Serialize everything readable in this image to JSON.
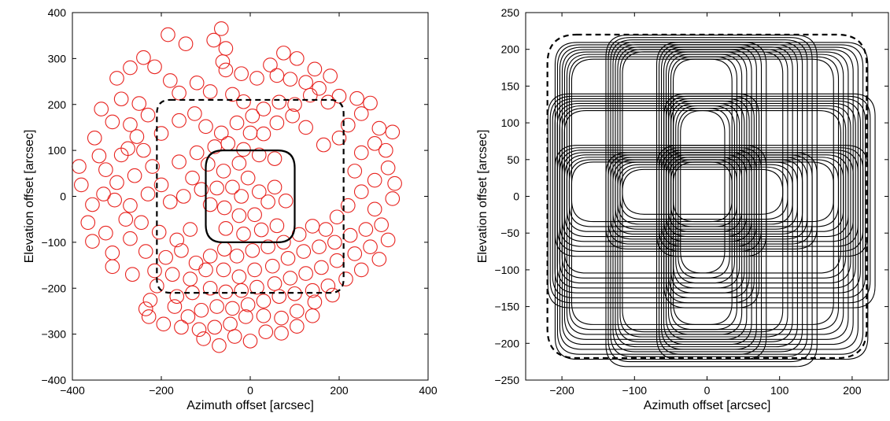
{
  "chart_data": [
    {
      "type": "scatter",
      "marker": "open-circle",
      "marker_color": "#e8231f",
      "xlabel": "Azimuth offset [arcsec]",
      "ylabel": "Elevation offset [arcsec]",
      "xlim": [
        -400,
        400
      ],
      "ylim": [
        -400,
        400
      ],
      "xticks": [
        "−400",
        "−200",
        "0",
        "200",
        "400"
      ],
      "yticks": [
        "−400",
        "−300",
        "−200",
        "−100",
        "0",
        "100",
        "200",
        "300",
        "400"
      ],
      "xtick_values": [
        -400,
        -200,
        0,
        200,
        400
      ],
      "ytick_values": [
        -400,
        -300,
        -200,
        -100,
        0,
        100,
        200,
        300,
        400
      ],
      "grid": false,
      "marker_radius_arcsec": 15.5,
      "points": [
        [
          -65,
          365
        ],
        [
          -185,
          352
        ],
        [
          -82,
          340
        ],
        [
          -145,
          332
        ],
        [
          -55,
          322
        ],
        [
          -62,
          293
        ],
        [
          -240,
          302
        ],
        [
          -270,
          280
        ],
        [
          -215,
          282
        ],
        [
          75,
          312
        ],
        [
          105,
          300
        ],
        [
          45,
          286
        ],
        [
          145,
          277
        ],
        [
          180,
          262
        ],
        [
          -300,
          257
        ],
        [
          -180,
          252
        ],
        [
          -120,
          247
        ],
        [
          -160,
          225
        ],
        [
          -90,
          228
        ],
        [
          -40,
          222
        ],
        [
          -55,
          275
        ],
        [
          -20,
          267
        ],
        [
          15,
          257
        ],
        [
          60,
          263
        ],
        [
          90,
          255
        ],
        [
          125,
          248
        ],
        [
          155,
          235
        ],
        [
          200,
          218
        ],
        [
          -335,
          190
        ],
        [
          -290,
          212
        ],
        [
          -250,
          202
        ],
        [
          -230,
          177
        ],
        [
          -270,
          156
        ],
        [
          -310,
          162
        ],
        [
          -350,
          127
        ],
        [
          -275,
          104
        ],
        [
          -255,
          130
        ],
        [
          -200,
          137
        ],
        [
          -160,
          165
        ],
        [
          -125,
          180
        ],
        [
          -100,
          152
        ],
        [
          -65,
          138
        ],
        [
          -30,
          160
        ],
        [
          5,
          175
        ],
        [
          30,
          190
        ],
        [
          -15,
          206
        ],
        [
          65,
          205
        ],
        [
          100,
          200
        ],
        [
          135,
          220
        ],
        [
          175,
          205
        ],
        [
          240,
          213
        ],
        [
          270,
          203
        ],
        [
          250,
          180
        ],
        [
          290,
          148
        ],
        [
          220,
          155
        ],
        [
          200,
          127
        ],
        [
          165,
          112
        ],
        [
          125,
          150
        ],
        [
          95,
          175
        ],
        [
          60,
          160
        ],
        [
          30,
          136
        ],
        [
          0,
          138
        ],
        [
          -325,
          58
        ],
        [
          -290,
          90
        ],
        [
          -240,
          100
        ],
        [
          -220,
          65
        ],
        [
          -260,
          45
        ],
        [
          -300,
          30
        ],
        [
          -330,
          5
        ],
        [
          -355,
          -18
        ],
        [
          -380,
          25
        ],
        [
          -385,
          65
        ],
        [
          -340,
          88
        ],
        [
          -365,
          -57
        ],
        [
          -305,
          -8
        ],
        [
          -270,
          -20
        ],
        [
          -230,
          5
        ],
        [
          -200,
          25
        ],
        [
          -180,
          -12
        ],
        [
          -150,
          0
        ],
        [
          -130,
          40
        ],
        [
          -160,
          75
        ],
        [
          -120,
          95
        ],
        [
          -80,
          108
        ],
        [
          -50,
          115
        ],
        [
          -15,
          102
        ],
        [
          20,
          90
        ],
        [
          55,
          82
        ],
        [
          -25,
          72
        ],
        [
          -5,
          40
        ],
        [
          -60,
          55
        ],
        [
          -95,
          70
        ],
        [
          -40,
          20
        ],
        [
          -75,
          18
        ],
        [
          -110,
          15
        ],
        [
          -90,
          -18
        ],
        [
          -58,
          -25
        ],
        [
          -20,
          0
        ],
        [
          20,
          10
        ],
        [
          55,
          20
        ],
        [
          40,
          -12
        ],
        [
          80,
          -10
        ],
        [
          -25,
          -42
        ],
        [
          10,
          -40
        ],
        [
          -55,
          -70
        ],
        [
          -15,
          -82
        ],
        [
          25,
          -73
        ],
        [
          60,
          -64
        ],
        [
          -135,
          -72
        ],
        [
          -165,
          -95
        ],
        [
          -205,
          -78
        ],
        [
          -245,
          -57
        ],
        [
          -280,
          -50
        ],
        [
          -325,
          -80
        ],
        [
          -355,
          -98
        ],
        [
          -310,
          -123
        ],
        [
          -270,
          -92
        ],
        [
          -235,
          -120
        ],
        [
          -190,
          -133
        ],
        [
          -155,
          -118
        ],
        [
          -122,
          -145
        ],
        [
          -90,
          -130
        ],
        [
          -58,
          -115
        ],
        [
          -30,
          -130
        ],
        [
          5,
          -118
        ],
        [
          40,
          -110
        ],
        [
          75,
          -100
        ],
        [
          110,
          -83
        ],
        [
          140,
          -65
        ],
        [
          170,
          -72
        ],
        [
          195,
          -45
        ],
        [
          220,
          -20
        ],
        [
          250,
          10
        ],
        [
          280,
          35
        ],
        [
          310,
          62
        ],
        [
          325,
          28
        ],
        [
          320,
          -5
        ],
        [
          280,
          -28
        ],
        [
          235,
          55
        ],
        [
          250,
          95
        ],
        [
          280,
          115
        ],
        [
          305,
          100
        ],
        [
          320,
          140
        ],
        [
          -310,
          -153
        ],
        [
          -265,
          -170
        ],
        [
          -215,
          -162
        ],
        [
          -175,
          -170
        ],
        [
          -135,
          -180
        ],
        [
          -100,
          -160
        ],
        [
          -60,
          -160
        ],
        [
          -25,
          -175
        ],
        [
          10,
          -160
        ],
        [
          50,
          -152
        ],
        [
          85,
          -135
        ],
        [
          120,
          -120
        ],
        [
          155,
          -110
        ],
        [
          190,
          -100
        ],
        [
          225,
          -85
        ],
        [
          260,
          -72
        ],
        [
          295,
          -62
        ],
        [
          310,
          -95
        ],
        [
          270,
          -110
        ],
        [
          235,
          -125
        ],
        [
          195,
          -140
        ],
        [
          160,
          -155
        ],
        [
          125,
          -168
        ],
        [
          90,
          -178
        ],
        [
          55,
          -190
        ],
        [
          15,
          -198
        ],
        [
          -20,
          -205
        ],
        [
          -55,
          -208
        ],
        [
          -90,
          -200
        ],
        [
          -130,
          -210
        ],
        [
          -165,
          -218
        ],
        [
          -210,
          -195
        ],
        [
          -225,
          -226
        ],
        [
          -235,
          -245
        ],
        [
          -228,
          -262
        ],
        [
          -170,
          -240
        ],
        [
          -140,
          -262
        ],
        [
          -110,
          -248
        ],
        [
          -75,
          -240
        ],
        [
          -40,
          -244
        ],
        [
          -5,
          -236
        ],
        [
          30,
          -228
        ],
        [
          65,
          -218
        ],
        [
          100,
          -212
        ],
        [
          140,
          -205
        ],
        [
          175,
          -195
        ],
        [
          215,
          -180
        ],
        [
          250,
          -160
        ],
        [
          290,
          -137
        ],
        [
          185,
          -215
        ],
        [
          145,
          -230
        ],
        [
          105,
          -250
        ],
        [
          70,
          -265
        ],
        [
          30,
          -260
        ],
        [
          -10,
          -262
        ],
        [
          -45,
          -278
        ],
        [
          -80,
          -285
        ],
        [
          -115,
          -290
        ],
        [
          -155,
          -285
        ],
        [
          -195,
          -278
        ],
        [
          -105,
          -310
        ],
        [
          -70,
          -325
        ],
        [
          -35,
          -305
        ],
        [
          0,
          -315
        ],
        [
          35,
          -295
        ],
        [
          70,
          -298
        ],
        [
          105,
          -283
        ],
        [
          140,
          -260
        ]
      ],
      "inner_region": {
        "style": "solid",
        "x": [
          -100,
          100
        ],
        "y": [
          -100,
          100
        ],
        "corner": 38
      },
      "outer_region": {
        "style": "dashed",
        "x": [
          -210,
          210
        ],
        "y": [
          -210,
          210
        ],
        "corner": 30
      }
    },
    {
      "type": "line",
      "line_color": "#000000",
      "xlabel": "Azimuth offset [arcsec]",
      "ylabel": "Elevation offset [arcsec]",
      "xlim": [
        -250,
        250
      ],
      "ylim": [
        -250,
        250
      ],
      "xticks": [
        "−200",
        "−100",
        "0",
        "100",
        "200"
      ],
      "yticks": [
        "−250",
        "−200",
        "−150",
        "−100",
        "−50",
        "0",
        "50",
        "100",
        "150",
        "200",
        "250"
      ],
      "xtick_values": [
        -200,
        -100,
        0,
        100,
        200
      ],
      "ytick_values": [
        -250,
        -200,
        -150,
        -100,
        -50,
        0,
        50,
        100,
        150,
        200,
        250
      ],
      "grid": false,
      "scan_pattern": {
        "description": "Rounded-square daisy scan, eight loops",
        "lobe_half_width": 128,
        "lobe_corner": 30,
        "lobe_centers": [
          [
            0,
            80
          ],
          [
            0,
            -80
          ],
          [
            -80,
            0
          ],
          [
            80,
            0
          ],
          [
            -70,
            70
          ],
          [
            70,
            70
          ],
          [
            -70,
            -70
          ],
          [
            70,
            -70
          ]
        ],
        "tracks_per_loop": 8,
        "track_spacing": 5
      },
      "boundary": {
        "style": "dashed",
        "x": [
          -220,
          220
        ],
        "y": [
          -220,
          220
        ],
        "corner": 40
      }
    }
  ]
}
